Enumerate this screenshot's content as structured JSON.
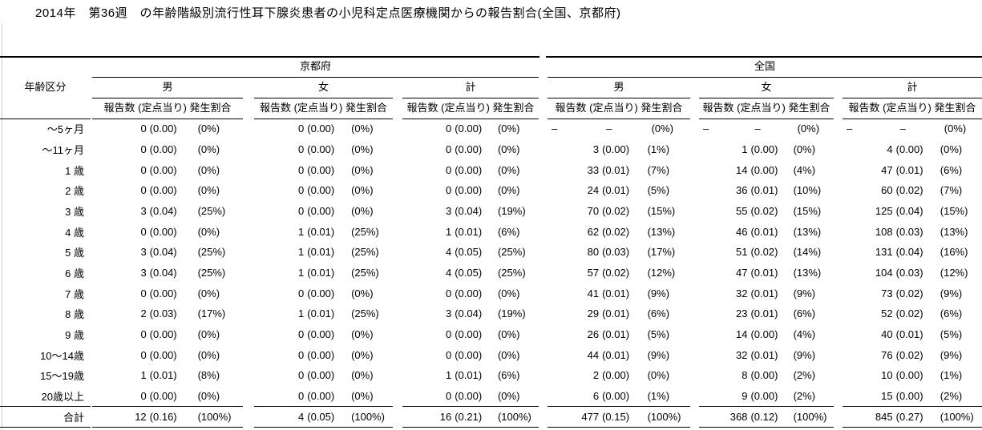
{
  "title": "2014年　第36週　の年齢階級別流行性耳下腺炎患者の小児科定点医療機関からの報告割合(全国、京都府)",
  "colors": {
    "text": "#000000",
    "background": "#ffffff",
    "rule": "#000000",
    "window_edge": "#c8c8c8"
  },
  "table": {
    "age_column_header": "年齢区分",
    "region_headers": {
      "kyoto": "京都府",
      "national": "全国"
    },
    "sex_headers": [
      "男",
      "女",
      "計"
    ],
    "metric_header": "報告数 (定点当り) 発生割合",
    "group_order": [
      "kyoto_male",
      "kyoto_female",
      "kyoto_total",
      "national_male",
      "national_female",
      "national_total"
    ],
    "value_order": [
      "report_count",
      "per_sentinel",
      "share_percent"
    ],
    "rows": [
      {
        "age": "～5ヶ月",
        "kyoto_male": [
          "0",
          "(0.00)",
          "(0%)"
        ],
        "kyoto_female": [
          "0",
          "(0.00)",
          "(0%)"
        ],
        "kyoto_total": [
          "0",
          "(0.00)",
          "(0%)"
        ],
        "national_male": [
          "–",
          "–",
          "(0%)"
        ],
        "national_female": [
          "–",
          "–",
          "(0%)"
        ],
        "national_total": [
          "–",
          "–",
          "(0%)"
        ]
      },
      {
        "age": "～11ヶ月",
        "kyoto_male": [
          "0",
          "(0.00)",
          "(0%)"
        ],
        "kyoto_female": [
          "0",
          "(0.00)",
          "(0%)"
        ],
        "kyoto_total": [
          "0",
          "(0.00)",
          "(0%)"
        ],
        "national_male": [
          "3",
          "(0.00)",
          "(1%)"
        ],
        "national_female": [
          "1",
          "(0.00)",
          "(0%)"
        ],
        "national_total": [
          "4",
          "(0.00)",
          "(0%)"
        ]
      },
      {
        "age": "1 歳",
        "kyoto_male": [
          "0",
          "(0.00)",
          "(0%)"
        ],
        "kyoto_female": [
          "0",
          "(0.00)",
          "(0%)"
        ],
        "kyoto_total": [
          "0",
          "(0.00)",
          "(0%)"
        ],
        "national_male": [
          "33",
          "(0.01)",
          "(7%)"
        ],
        "national_female": [
          "14",
          "(0.00)",
          "(4%)"
        ],
        "national_total": [
          "47",
          "(0.01)",
          "(6%)"
        ]
      },
      {
        "age": "2 歳",
        "kyoto_male": [
          "0",
          "(0.00)",
          "(0%)"
        ],
        "kyoto_female": [
          "0",
          "(0.00)",
          "(0%)"
        ],
        "kyoto_total": [
          "0",
          "(0.00)",
          "(0%)"
        ],
        "national_male": [
          "24",
          "(0.01)",
          "(5%)"
        ],
        "national_female": [
          "36",
          "(0.01)",
          "(10%)"
        ],
        "national_total": [
          "60",
          "(0.02)",
          "(7%)"
        ]
      },
      {
        "age": "3 歳",
        "kyoto_male": [
          "3",
          "(0.04)",
          "(25%)"
        ],
        "kyoto_female": [
          "0",
          "(0.00)",
          "(0%)"
        ],
        "kyoto_total": [
          "3",
          "(0.04)",
          "(19%)"
        ],
        "national_male": [
          "70",
          "(0.02)",
          "(15%)"
        ],
        "national_female": [
          "55",
          "(0.02)",
          "(15%)"
        ],
        "national_total": [
          "125",
          "(0.04)",
          "(15%)"
        ]
      },
      {
        "age": "4 歳",
        "kyoto_male": [
          "0",
          "(0.00)",
          "(0%)"
        ],
        "kyoto_female": [
          "1",
          "(0.01)",
          "(25%)"
        ],
        "kyoto_total": [
          "1",
          "(0.01)",
          "(6%)"
        ],
        "national_male": [
          "62",
          "(0.02)",
          "(13%)"
        ],
        "national_female": [
          "46",
          "(0.01)",
          "(13%)"
        ],
        "national_total": [
          "108",
          "(0.03)",
          "(13%)"
        ]
      },
      {
        "age": "5 歳",
        "kyoto_male": [
          "3",
          "(0.04)",
          "(25%)"
        ],
        "kyoto_female": [
          "1",
          "(0.01)",
          "(25%)"
        ],
        "kyoto_total": [
          "4",
          "(0.05)",
          "(25%)"
        ],
        "national_male": [
          "80",
          "(0.03)",
          "(17%)"
        ],
        "national_female": [
          "51",
          "(0.02)",
          "(14%)"
        ],
        "national_total": [
          "131",
          "(0.04)",
          "(16%)"
        ]
      },
      {
        "age": "6 歳",
        "kyoto_male": [
          "3",
          "(0.04)",
          "(25%)"
        ],
        "kyoto_female": [
          "1",
          "(0.01)",
          "(25%)"
        ],
        "kyoto_total": [
          "4",
          "(0.05)",
          "(25%)"
        ],
        "national_male": [
          "57",
          "(0.02)",
          "(12%)"
        ],
        "national_female": [
          "47",
          "(0.01)",
          "(13%)"
        ],
        "national_total": [
          "104",
          "(0.03)",
          "(12%)"
        ]
      },
      {
        "age": "7 歳",
        "kyoto_male": [
          "0",
          "(0.00)",
          "(0%)"
        ],
        "kyoto_female": [
          "0",
          "(0.00)",
          "(0%)"
        ],
        "kyoto_total": [
          "0",
          "(0.00)",
          "(0%)"
        ],
        "national_male": [
          "41",
          "(0.01)",
          "(9%)"
        ],
        "national_female": [
          "32",
          "(0.01)",
          "(9%)"
        ],
        "national_total": [
          "73",
          "(0.02)",
          "(9%)"
        ]
      },
      {
        "age": "8 歳",
        "kyoto_male": [
          "2",
          "(0.03)",
          "(17%)"
        ],
        "kyoto_female": [
          "1",
          "(0.01)",
          "(25%)"
        ],
        "kyoto_total": [
          "3",
          "(0.04)",
          "(19%)"
        ],
        "national_male": [
          "29",
          "(0.01)",
          "(6%)"
        ],
        "national_female": [
          "23",
          "(0.01)",
          "(6%)"
        ],
        "national_total": [
          "52",
          "(0.02)",
          "(6%)"
        ]
      },
      {
        "age": "9 歳",
        "kyoto_male": [
          "0",
          "(0.00)",
          "(0%)"
        ],
        "kyoto_female": [
          "0",
          "(0.00)",
          "(0%)"
        ],
        "kyoto_total": [
          "0",
          "(0.00)",
          "(0%)"
        ],
        "national_male": [
          "26",
          "(0.01)",
          "(5%)"
        ],
        "national_female": [
          "14",
          "(0.00)",
          "(4%)"
        ],
        "national_total": [
          "40",
          "(0.01)",
          "(5%)"
        ]
      },
      {
        "age": "10～14歳",
        "kyoto_male": [
          "0",
          "(0.00)",
          "(0%)"
        ],
        "kyoto_female": [
          "0",
          "(0.00)",
          "(0%)"
        ],
        "kyoto_total": [
          "0",
          "(0.00)",
          "(0%)"
        ],
        "national_male": [
          "44",
          "(0.01)",
          "(9%)"
        ],
        "national_female": [
          "32",
          "(0.01)",
          "(9%)"
        ],
        "national_total": [
          "76",
          "(0.02)",
          "(9%)"
        ]
      },
      {
        "age": "15～19歳",
        "kyoto_male": [
          "1",
          "(0.01)",
          "(8%)"
        ],
        "kyoto_female": [
          "0",
          "(0.00)",
          "(0%)"
        ],
        "kyoto_total": [
          "1",
          "(0.01)",
          "(6%)"
        ],
        "national_male": [
          "2",
          "(0.00)",
          "(0%)"
        ],
        "national_female": [
          "8",
          "(0.00)",
          "(2%)"
        ],
        "national_total": [
          "10",
          "(0.00)",
          "(1%)"
        ]
      },
      {
        "age": "20歳以上",
        "kyoto_male": [
          "0",
          "(0.00)",
          "(0%)"
        ],
        "kyoto_female": [
          "0",
          "(0.00)",
          "(0%)"
        ],
        "kyoto_total": [
          "0",
          "(0.00)",
          "(0%)"
        ],
        "national_male": [
          "6",
          "(0.00)",
          "(1%)"
        ],
        "national_female": [
          "9",
          "(0.00)",
          "(2%)"
        ],
        "national_total": [
          "15",
          "(0.00)",
          "(2%)"
        ]
      }
    ],
    "total_row": {
      "age": "合計",
      "kyoto_male": [
        "12",
        "(0.16)",
        "(100%)"
      ],
      "kyoto_female": [
        "4",
        "(0.05)",
        "(100%)"
      ],
      "kyoto_total": [
        "16",
        "(0.21)",
        "(100%)"
      ],
      "national_male": [
        "477",
        "(0.15)",
        "(100%)"
      ],
      "national_female": [
        "368",
        "(0.12)",
        "(100%)"
      ],
      "national_total": [
        "845",
        "(0.27)",
        "(100%)"
      ]
    }
  }
}
